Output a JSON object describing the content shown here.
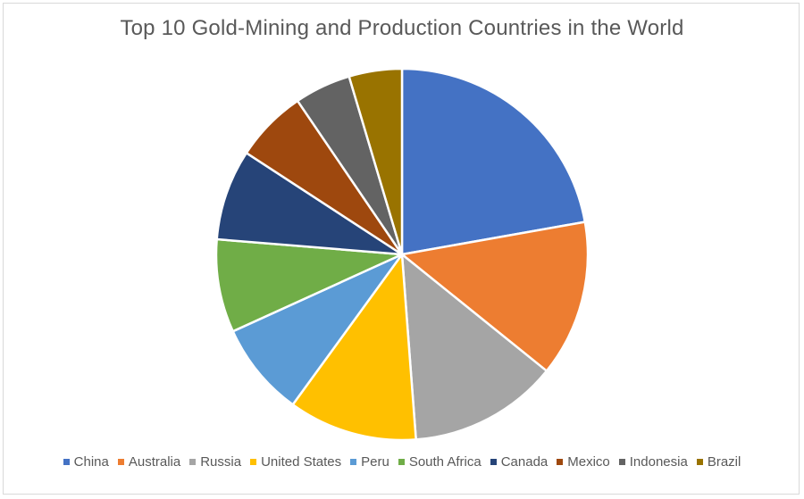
{
  "chart_data": {
    "type": "pie",
    "title": "Top 10 Gold-Mining and Production Countries in the World",
    "categories": [
      "China",
      "Australia",
      "Russia",
      "United States",
      "Peru",
      "South Africa",
      "Canada",
      "Mexico",
      "Indonesia",
      "Brazil"
    ],
    "values": [
      22.2,
      13.6,
      13.0,
      11.2,
      8.2,
      8.1,
      7.9,
      6.3,
      4.9,
      4.6
    ],
    "colors": [
      "#4472c4",
      "#ed7d31",
      "#a5a5a5",
      "#ffc000",
      "#5b9bd5",
      "#70ad47",
      "#264478",
      "#9e480e",
      "#636363",
      "#997300"
    ],
    "legend_position": "bottom",
    "start_angle": "12 o'clock, clockwise"
  }
}
